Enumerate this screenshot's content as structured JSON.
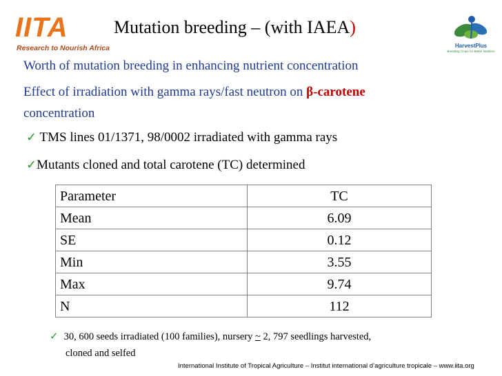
{
  "logos": {
    "iita_word": "IITA",
    "iita_tagline": "Research to Nourish Africa",
    "hp_word": "HarvestPlus",
    "hp_tagline": "Breeding Crops for Better Nutrition"
  },
  "title": {
    "text": "Mutation breeding – (with IAEA",
    "close_paren": ")"
  },
  "subtitle_lines": {
    "line1": "Worth of mutation breeding in enhancing nutrient concentration",
    "line2_prefix": "Effect of irradiation with gamma rays/fast neutron on ",
    "line2_highlight": "β-carotene",
    "line3": "concentration"
  },
  "bullets": [
    {
      "check": "✓",
      "text": " TMS lines 01/1371, 98/0002 irradiated with gamma rays"
    },
    {
      "check": "✓",
      "text": "Mutants cloned and total carotene (TC) determined"
    }
  ],
  "table": {
    "headers": [
      "Parameter",
      "TC"
    ],
    "rows": [
      [
        "Mean",
        "6.09"
      ],
      [
        "SE",
        "0.12"
      ],
      [
        "Min",
        "3.55"
      ],
      [
        "Max",
        "9.74"
      ],
      [
        "N",
        "112"
      ]
    ]
  },
  "note": {
    "check": "✓",
    "before": "30, 600 seeds irradiated (100 families),  nursery ",
    "tilde": "~",
    "after": " 2, 797 seedlings harvested,",
    "line2": "cloned and selfed"
  },
  "footer": "International Institute of Tropical Agriculture – Institut international d’agriculture tropicale – www.iita.org",
  "colors": {
    "subtitle_blue": "#1f3a93",
    "highlight_red": "#c00000",
    "iita_orange": "#e8731b",
    "check_green": "#2e9a2e"
  }
}
